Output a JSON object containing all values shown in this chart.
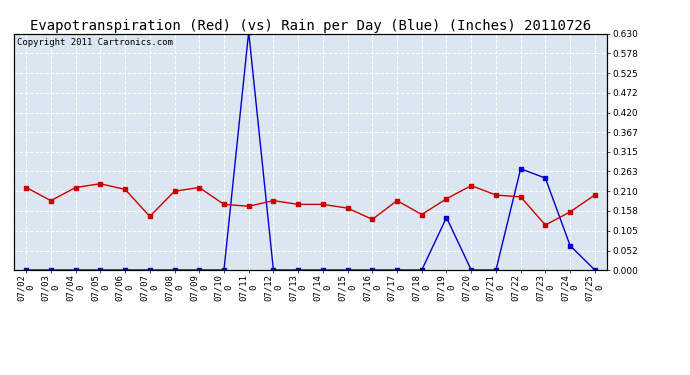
{
  "title": "Evapotranspiration (Red) (vs) Rain per Day (Blue) (Inches) 20110726",
  "copyright": "Copyright 2011 Cartronics.com",
  "dates": [
    "07/02",
    "07/03",
    "07/04",
    "07/05",
    "07/06",
    "07/07",
    "07/08",
    "07/09",
    "07/10",
    "07/11",
    "07/12",
    "07/13",
    "07/14",
    "07/15",
    "07/16",
    "07/17",
    "07/18",
    "07/19",
    "07/20",
    "07/21",
    "07/22",
    "07/23",
    "07/24",
    "07/25"
  ],
  "dates_bottom": [
    "0",
    "0",
    "0",
    "0",
    "0",
    "0",
    "0",
    "0",
    "0",
    "0",
    "0",
    "0",
    "0",
    "0",
    "0",
    "0",
    "0",
    "0",
    "0",
    "0",
    "0",
    "0",
    "0",
    "0"
  ],
  "red_data": [
    0.22,
    0.185,
    0.22,
    0.23,
    0.215,
    0.143,
    0.21,
    0.22,
    0.175,
    0.17,
    0.185,
    0.175,
    0.175,
    0.165,
    0.135,
    0.185,
    0.148,
    0.19,
    0.225,
    0.2,
    0.195,
    0.12,
    0.155,
    0.2
  ],
  "blue_data": [
    0.0,
    0.0,
    0.0,
    0.0,
    0.0,
    0.0,
    0.0,
    0.0,
    0.0,
    0.635,
    0.0,
    0.0,
    0.0,
    0.0,
    0.0,
    0.0,
    0.0,
    0.14,
    0.0,
    0.0,
    0.27,
    0.245,
    0.065,
    0.0
  ],
  "ylim": [
    0.0,
    0.63
  ],
  "yticks": [
    0.0,
    0.052,
    0.105,
    0.158,
    0.21,
    0.263,
    0.315,
    0.367,
    0.42,
    0.472,
    0.525,
    0.578,
    0.63
  ],
  "red_color": "#cc0000",
  "blue_color": "#0000cc",
  "marker_size": 3,
  "line_width": 1.0,
  "bg_color": "#ffffff",
  "plot_bg_color": "#dce6f0",
  "grid_color": "#ffffff",
  "title_fontsize": 10,
  "tick_fontsize": 6.5,
  "copyright_fontsize": 6.5
}
